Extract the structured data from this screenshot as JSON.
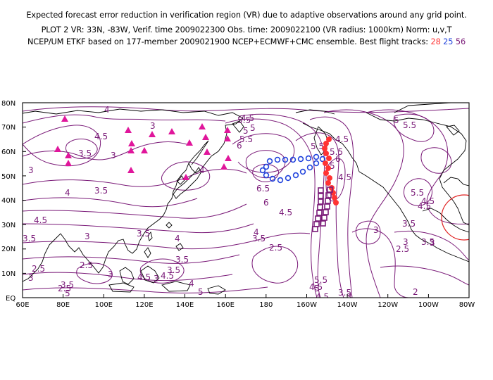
{
  "header": {
    "line1": "Expected forecast error reduction in verification region (VR) due to adaptive observations around any grid point.",
    "line2": "PLOT 2 VR: 33N, -83W, Verif. time 2009022300 Obs. time: 2009022100 (VR radius: 1000km) Norm: u,v,T",
    "line3_prefix": "NCEP/UM ETKF based on 177-member 2009021900 NCEP+ECMWF+CMC ensemble. Best flight tracks:",
    "tracks": [
      {
        "id": "28",
        "color": "#ff3333"
      },
      {
        "id": "25",
        "color": "#2244dd"
      },
      {
        "id": "56",
        "color": "#7a1a78"
      }
    ]
  },
  "map": {
    "lat_labels": [
      "80N",
      "70N",
      "60N",
      "50N",
      "40N",
      "30N",
      "20N",
      "10N",
      "EQ"
    ],
    "lon_labels": [
      "60E",
      "80E",
      "100E",
      "120E",
      "140E",
      "160E",
      "180",
      "160W",
      "140W",
      "120W",
      "100W",
      "80W"
    ],
    "contour_labels": [
      "4",
      "4.5",
      "3.5",
      "3",
      "3",
      "3",
      "3.5",
      "4",
      "3.5",
      "4",
      "4.5",
      "3.5",
      "4",
      "2.5",
      "3",
      "2.5",
      "2.5",
      "3",
      "3.5",
      "3",
      "3.5",
      "3.5",
      "3",
      "4",
      "4.5",
      "4.5",
      "5",
      "5",
      "4.5",
      "5",
      "5.5",
      "6",
      "6.5",
      "6",
      "5.5",
      "5",
      "4.5",
      "4.5",
      "5.5",
      "6",
      "5.5",
      "5",
      "4.5",
      "3.5",
      "4",
      "2.5",
      "3",
      "5.5",
      "5",
      "4.5",
      "4.5",
      "3",
      "2.5",
      "3",
      "3.5",
      "2",
      "3",
      "3.5",
      "3.5",
      "4.5",
      "5.5",
      "5.5",
      "4.5",
      "5"
    ],
    "colors": {
      "contour": "#7a1a78",
      "land": "#000000",
      "triangles": "#e0169b",
      "vr_circle": "#e02020",
      "track28": "#ff3333",
      "track25": "#2244dd",
      "track56": "#7a1a78"
    }
  }
}
